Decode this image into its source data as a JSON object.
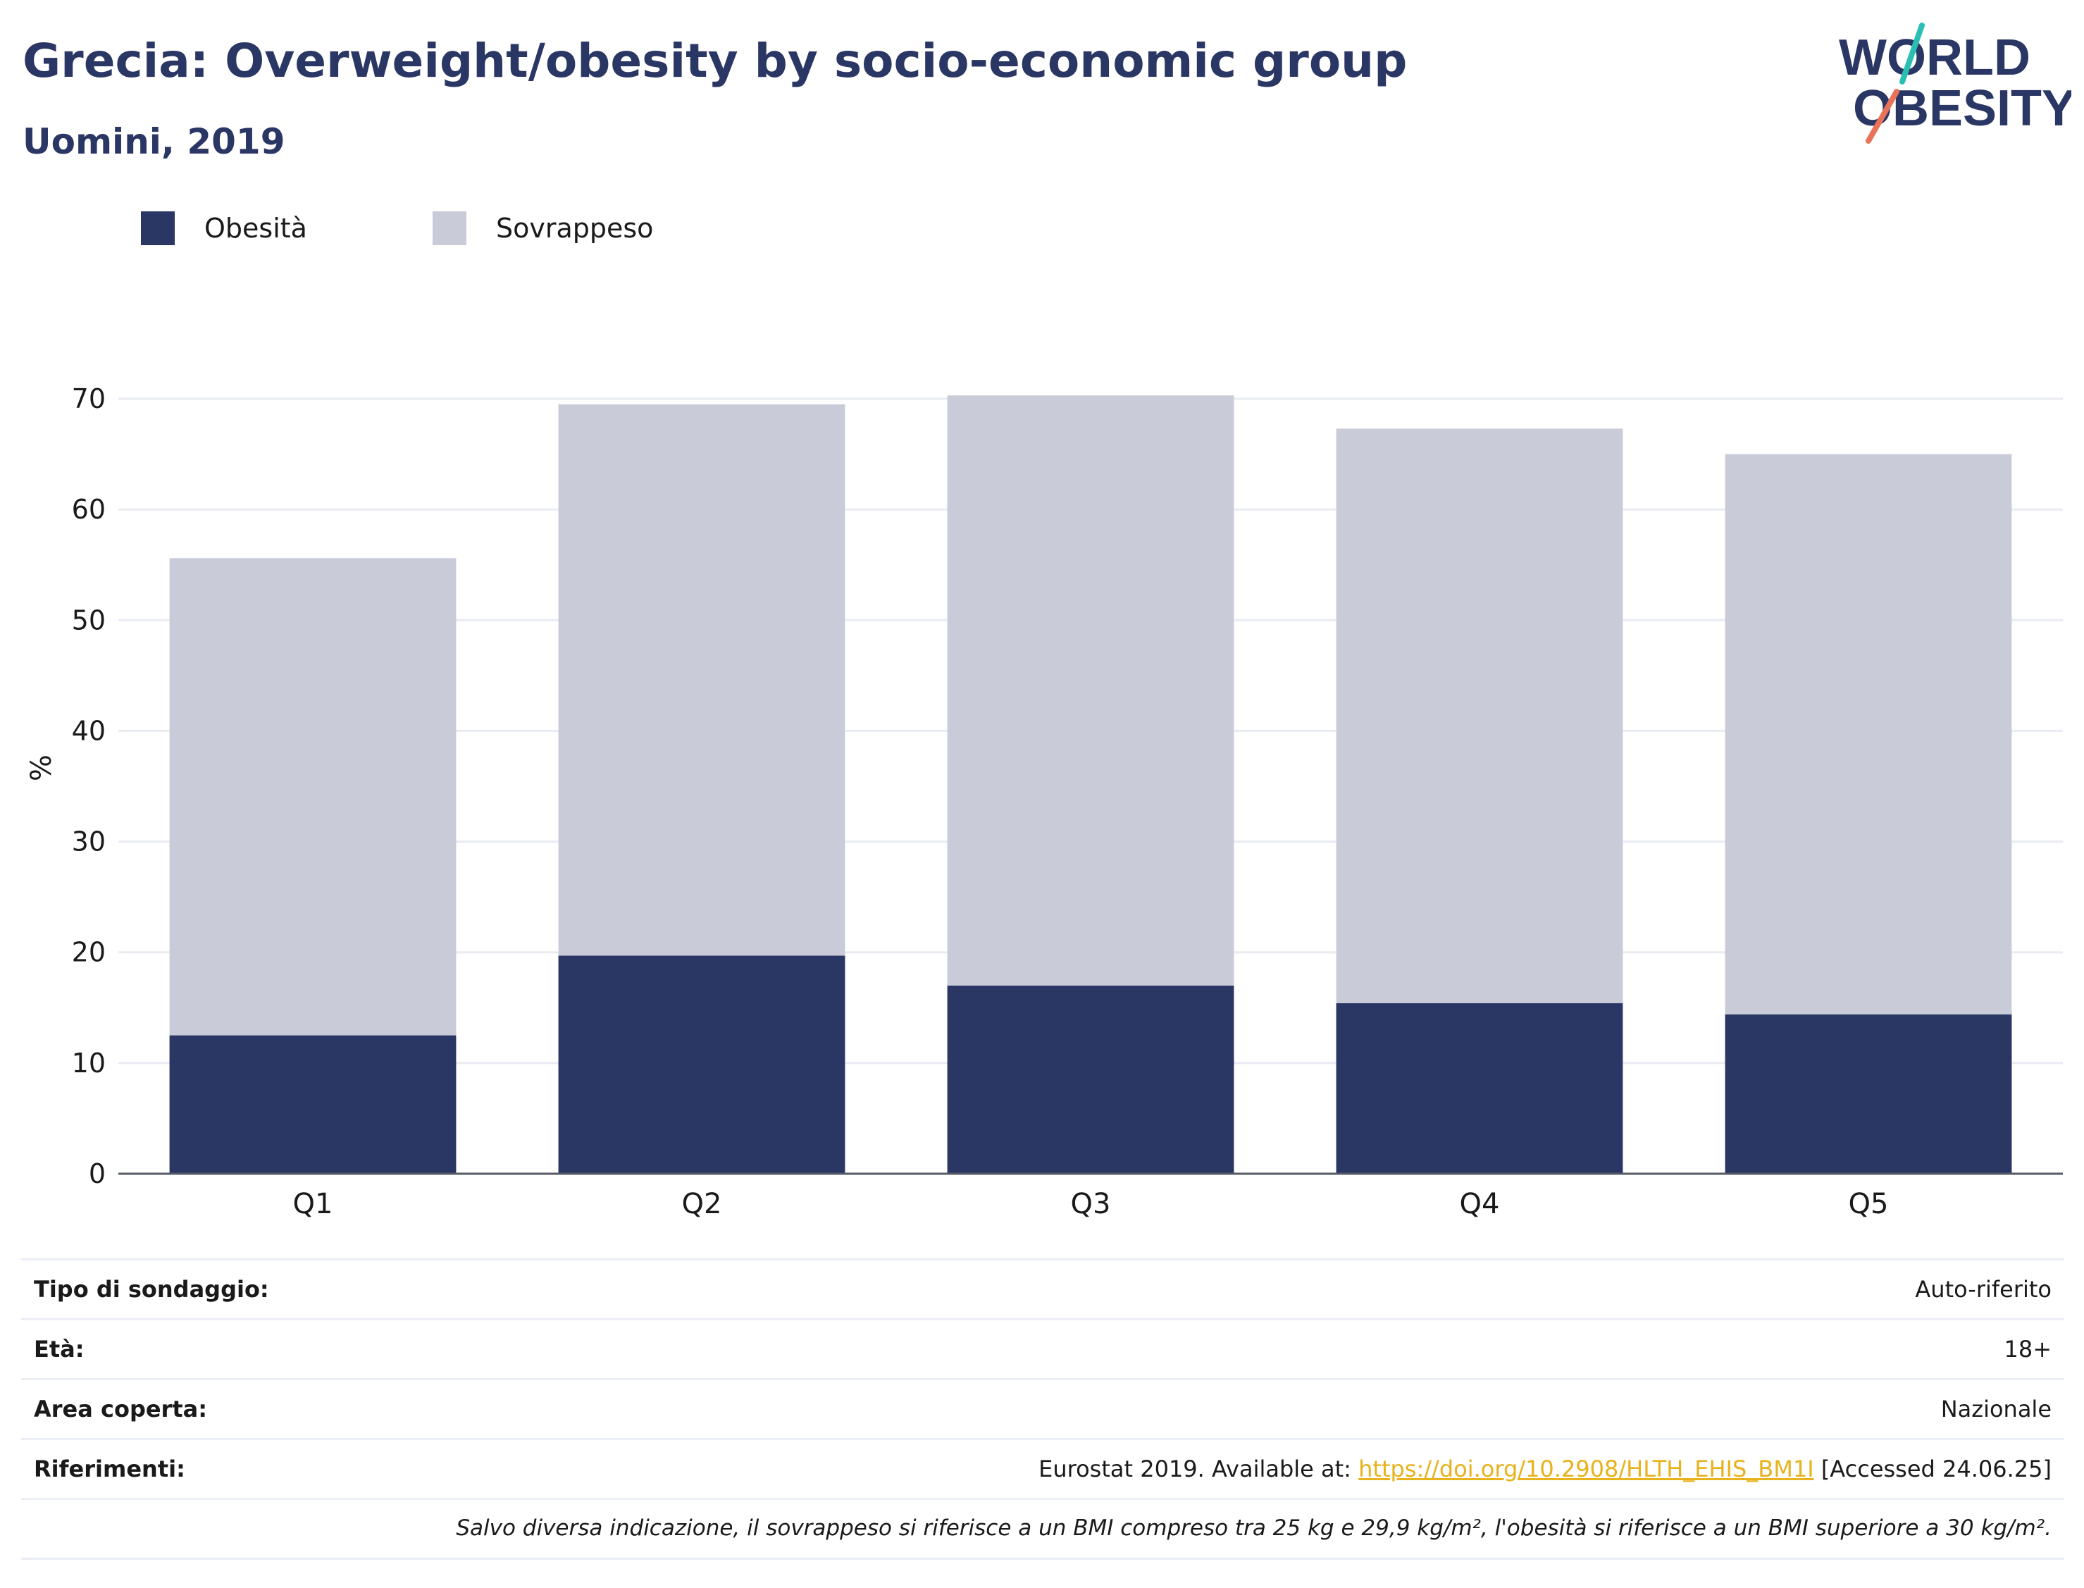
{
  "header": {
    "title": "Grecia: Overweight/obesity by socio-economic group",
    "subtitle": "Uomini, 2019"
  },
  "logo": {
    "line1": "WORLD",
    "line2": "OBESITY"
  },
  "legend": [
    {
      "label": "Obesità",
      "color": "#2a3664"
    },
    {
      "label": "Sovrappeso",
      "color": "#c9ccd8"
    }
  ],
  "chart_data": {
    "type": "bar",
    "stacked": true,
    "categories": [
      "Q1",
      "Q2",
      "Q3",
      "Q4",
      "Q5"
    ],
    "series": [
      {
        "name": "Obesità",
        "values": [
          12.5,
          19.7,
          17.0,
          15.4,
          14.4
        ],
        "color": "#2a3664"
      },
      {
        "name": "Sovrappeso",
        "values": [
          43.1,
          49.8,
          53.3,
          51.9,
          50.6
        ],
        "color": "#c9ccd8"
      }
    ],
    "ylabel": "%",
    "ylim": [
      0,
      70
    ],
    "yticks": [
      0,
      10,
      20,
      30,
      40,
      50,
      60,
      70
    ],
    "grid": true
  },
  "meta": {
    "survey_type_label": "Tipo di sondaggio:",
    "survey_type_value": "Auto-riferito",
    "age_label": "Età:",
    "age_value": "18+",
    "area_label": "Area coperta:",
    "area_value": "Nazionale",
    "references_label": "Riferimenti:",
    "references_prefix": "Eurostat 2019. Available at: ",
    "references_link": "https://doi.org/10.2908/HLTH_EHIS_BM1I",
    "references_suffix": " [Accessed 24.06.25]",
    "note": "Salvo diversa indicazione, il sovrappeso si riferisce a un BMI compreso tra 25 kg e 29,9 kg/m², l'obesità si riferisce a un BMI superiore a 30 kg/m²."
  }
}
